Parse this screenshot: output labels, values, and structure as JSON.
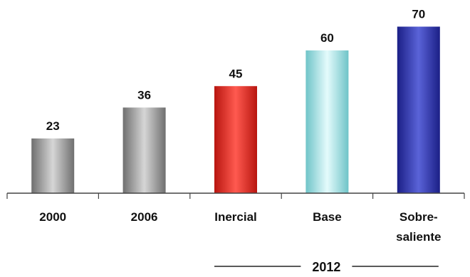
{
  "chart_data": {
    "type": "bar",
    "categories": [
      "2000",
      "2006",
      "Inercial",
      "Base",
      "Sobre-saliente"
    ],
    "category_lines": [
      [
        "2000"
      ],
      [
        "2006"
      ],
      [
        "Inercial"
      ],
      [
        "Base"
      ],
      [
        "Sobre-",
        "saliente"
      ]
    ],
    "values": [
      23,
      36,
      45,
      60,
      70
    ],
    "group_label": "2012",
    "group_categories": [
      "Inercial",
      "Base",
      "Sobre-saliente"
    ],
    "ylim": [
      0,
      80
    ],
    "grid": false,
    "legend": false,
    "bar_colors": [
      {
        "dark": "#6f6f6f",
        "light": "#d6d6d6"
      },
      {
        "dark": "#6f6f6f",
        "light": "#d6d6d6"
      },
      {
        "dark": "#b8150f",
        "light": "#ff5a50"
      },
      {
        "dark": "#6fc4c8",
        "light": "#e4fbfc"
      },
      {
        "dark": "#1b1f86",
        "light": "#5a63d8"
      }
    ],
    "axis_color": "#444444"
  }
}
